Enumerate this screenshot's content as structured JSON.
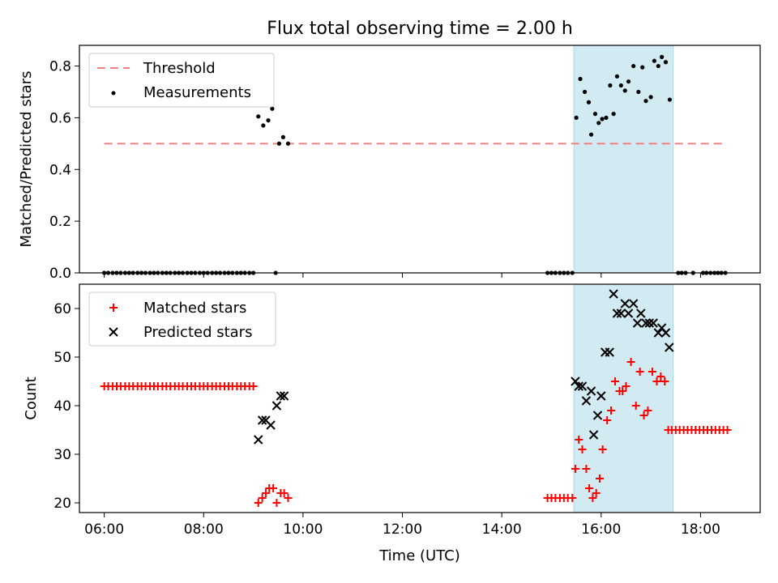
{
  "chart_data": {
    "title": "Flux total observing time = 2.00 h",
    "xlabel": "Time (UTC)",
    "x_ticks": [
      "06:00",
      "08:00",
      "10:00",
      "12:00",
      "14:00",
      "16:00",
      "18:00"
    ],
    "x_tick_hours": [
      6,
      8,
      10,
      12,
      14,
      16,
      18
    ],
    "xlim_hours": [
      5.5,
      19.2
    ],
    "highlight_band_hours": [
      15.45,
      17.45
    ],
    "colors": {
      "highlight": "#add8e6",
      "threshold": "#f08080",
      "matched": "#ff0000",
      "predicted": "#000000",
      "measurement": "#000000"
    },
    "panels": [
      {
        "type": "scatter",
        "ylabel": "Matched/Predicted stars",
        "ylim": [
          0,
          0.88
        ],
        "y_ticks": [
          "0.0",
          "0.2",
          "0.4",
          "0.6",
          "0.8"
        ],
        "y_tick_values": [
          0,
          0.2,
          0.4,
          0.6,
          0.8
        ],
        "legend_position": "top-left",
        "threshold": {
          "name": "Threshold",
          "value": 0.5,
          "x_range": [
            6.0,
            18.5
          ]
        },
        "series": [
          {
            "name": "Measurements",
            "points": [
              [
                6.0,
                0
              ],
              [
                6.08,
                0
              ],
              [
                6.17,
                0
              ],
              [
                6.25,
                0
              ],
              [
                6.33,
                0
              ],
              [
                6.42,
                0
              ],
              [
                6.5,
                0
              ],
              [
                6.58,
                0
              ],
              [
                6.67,
                0
              ],
              [
                6.75,
                0
              ],
              [
                6.83,
                0
              ],
              [
                6.92,
                0
              ],
              [
                7.0,
                0
              ],
              [
                7.08,
                0
              ],
              [
                7.17,
                0
              ],
              [
                7.25,
                0
              ],
              [
                7.33,
                0
              ],
              [
                7.42,
                0
              ],
              [
                7.5,
                0
              ],
              [
                7.58,
                0
              ],
              [
                7.67,
                0
              ],
              [
                7.75,
                0
              ],
              [
                7.83,
                0
              ],
              [
                7.92,
                0
              ],
              [
                8.0,
                0
              ],
              [
                8.08,
                0
              ],
              [
                8.17,
                0
              ],
              [
                8.25,
                0
              ],
              [
                8.33,
                0
              ],
              [
                8.42,
                0
              ],
              [
                8.5,
                0
              ],
              [
                8.58,
                0
              ],
              [
                8.67,
                0
              ],
              [
                8.75,
                0
              ],
              [
                8.83,
                0
              ],
              [
                8.92,
                0
              ],
              [
                9.0,
                0
              ],
              [
                9.1,
                0.605
              ],
              [
                9.2,
                0.57
              ],
              [
                9.3,
                0.59
              ],
              [
                9.38,
                0.635
              ],
              [
                9.45,
                0
              ],
              [
                9.52,
                0.5
              ],
              [
                9.6,
                0.525
              ],
              [
                9.7,
                0.5
              ],
              [
                14.92,
                0
              ],
              [
                15.0,
                0
              ],
              [
                15.08,
                0
              ],
              [
                15.17,
                0
              ],
              [
                15.25,
                0
              ],
              [
                15.33,
                0
              ],
              [
                15.42,
                0
              ],
              [
                15.5,
                0.6
              ],
              [
                15.58,
                0.75
              ],
              [
                15.67,
                0.7
              ],
              [
                15.75,
                0.66
              ],
              [
                15.8,
                0.535
              ],
              [
                15.88,
                0.615
              ],
              [
                15.95,
                0.58
              ],
              [
                16.02,
                0.595
              ],
              [
                16.1,
                0.6
              ],
              [
                16.18,
                0.725
              ],
              [
                16.25,
                0.615
              ],
              [
                16.32,
                0.76
              ],
              [
                16.4,
                0.725
              ],
              [
                16.48,
                0.705
              ],
              [
                16.55,
                0.74
              ],
              [
                16.65,
                0.8
              ],
              [
                16.75,
                0.7
              ],
              [
                16.83,
                0.795
              ],
              [
                16.9,
                0.665
              ],
              [
                17.0,
                0.68
              ],
              [
                17.07,
                0.82
              ],
              [
                17.15,
                0.8
              ],
              [
                17.22,
                0.835
              ],
              [
                17.3,
                0.815
              ],
              [
                17.38,
                0.67
              ],
              [
                17.55,
                0
              ],
              [
                17.62,
                0
              ],
              [
                17.7,
                0
              ],
              [
                17.85,
                0
              ],
              [
                18.05,
                0
              ],
              [
                18.12,
                0
              ],
              [
                18.2,
                0
              ],
              [
                18.28,
                0
              ],
              [
                18.35,
                0
              ],
              [
                18.42,
                0
              ],
              [
                18.5,
                0
              ]
            ]
          }
        ]
      },
      {
        "type": "scatter",
        "ylabel": "Count",
        "ylim": [
          18,
          65
        ],
        "y_ticks": [
          "20",
          "30",
          "40",
          "50",
          "60"
        ],
        "y_tick_values": [
          20,
          30,
          40,
          50,
          60
        ],
        "legend_position": "top-left",
        "series": [
          {
            "name": "Matched stars",
            "marker": "plus",
            "points": [
              [
                6.0,
                44
              ],
              [
                6.08,
                44
              ],
              [
                6.17,
                44
              ],
              [
                6.25,
                44
              ],
              [
                6.33,
                44
              ],
              [
                6.42,
                44
              ],
              [
                6.5,
                44
              ],
              [
                6.58,
                44
              ],
              [
                6.67,
                44
              ],
              [
                6.75,
                44
              ],
              [
                6.83,
                44
              ],
              [
                6.92,
                44
              ],
              [
                7.0,
                44
              ],
              [
                7.08,
                44
              ],
              [
                7.17,
                44
              ],
              [
                7.25,
                44
              ],
              [
                7.33,
                44
              ],
              [
                7.42,
                44
              ],
              [
                7.5,
                44
              ],
              [
                7.58,
                44
              ],
              [
                7.67,
                44
              ],
              [
                7.75,
                44
              ],
              [
                7.83,
                44
              ],
              [
                7.92,
                44
              ],
              [
                8.0,
                44
              ],
              [
                8.08,
                44
              ],
              [
                8.17,
                44
              ],
              [
                8.25,
                44
              ],
              [
                8.33,
                44
              ],
              [
                8.42,
                44
              ],
              [
                8.5,
                44
              ],
              [
                8.58,
                44
              ],
              [
                8.67,
                44
              ],
              [
                8.75,
                44
              ],
              [
                8.83,
                44
              ],
              [
                8.92,
                44
              ],
              [
                9.0,
                44
              ],
              [
                9.1,
                20
              ],
              [
                9.18,
                21
              ],
              [
                9.25,
                22
              ],
              [
                9.32,
                23
              ],
              [
                9.4,
                23
              ],
              [
                9.47,
                20
              ],
              [
                9.55,
                22
              ],
              [
                9.62,
                22
              ],
              [
                9.7,
                21
              ],
              [
                14.92,
                21
              ],
              [
                15.0,
                21
              ],
              [
                15.08,
                21
              ],
              [
                15.17,
                21
              ],
              [
                15.25,
                21
              ],
              [
                15.33,
                21
              ],
              [
                15.42,
                21
              ],
              [
                15.48,
                27
              ],
              [
                15.55,
                33
              ],
              [
                15.62,
                31
              ],
              [
                15.7,
                27
              ],
              [
                15.76,
                23
              ],
              [
                15.83,
                21
              ],
              [
                15.9,
                22
              ],
              [
                15.97,
                25
              ],
              [
                16.03,
                31
              ],
              [
                16.12,
                37
              ],
              [
                16.2,
                39
              ],
              [
                16.28,
                45
              ],
              [
                16.37,
                43
              ],
              [
                16.43,
                43
              ],
              [
                16.5,
                44
              ],
              [
                16.6,
                49
              ],
              [
                16.7,
                40
              ],
              [
                16.78,
                47
              ],
              [
                16.86,
                38
              ],
              [
                16.94,
                39
              ],
              [
                17.03,
                47
              ],
              [
                17.12,
                45
              ],
              [
                17.2,
                46
              ],
              [
                17.28,
                45
              ],
              [
                17.35,
                35
              ],
              [
                17.42,
                35
              ],
              [
                17.5,
                35
              ],
              [
                17.58,
                35
              ],
              [
                17.66,
                35
              ],
              [
                17.74,
                35
              ],
              [
                17.82,
                35
              ],
              [
                17.9,
                35
              ],
              [
                17.98,
                35
              ],
              [
                18.06,
                35
              ],
              [
                18.14,
                35
              ],
              [
                18.22,
                35
              ],
              [
                18.3,
                35
              ],
              [
                18.38,
                35
              ],
              [
                18.46,
                35
              ],
              [
                18.54,
                35
              ]
            ]
          },
          {
            "name": "Predicted stars",
            "marker": "x",
            "points": [
              [
                9.1,
                33
              ],
              [
                9.18,
                37
              ],
              [
                9.25,
                37
              ],
              [
                9.35,
                36
              ],
              [
                9.47,
                40
              ],
              [
                9.55,
                42
              ],
              [
                9.62,
                42
              ],
              [
                15.48,
                45
              ],
              [
                15.55,
                44
              ],
              [
                15.62,
                44
              ],
              [
                15.7,
                41
              ],
              [
                15.8,
                43
              ],
              [
                15.85,
                34
              ],
              [
                15.93,
                38
              ],
              [
                16.0,
                42
              ],
              [
                16.08,
                51
              ],
              [
                16.17,
                51
              ],
              [
                16.25,
                63
              ],
              [
                16.32,
                59
              ],
              [
                16.4,
                59
              ],
              [
                16.48,
                61
              ],
              [
                16.55,
                59
              ],
              [
                16.65,
                61
              ],
              [
                16.73,
                57
              ],
              [
                16.8,
                59
              ],
              [
                16.9,
                57
              ],
              [
                16.97,
                57
              ],
              [
                17.05,
                57
              ],
              [
                17.15,
                55
              ],
              [
                17.22,
                56
              ],
              [
                17.3,
                55
              ],
              [
                17.37,
                52
              ]
            ]
          }
        ]
      }
    ]
  }
}
